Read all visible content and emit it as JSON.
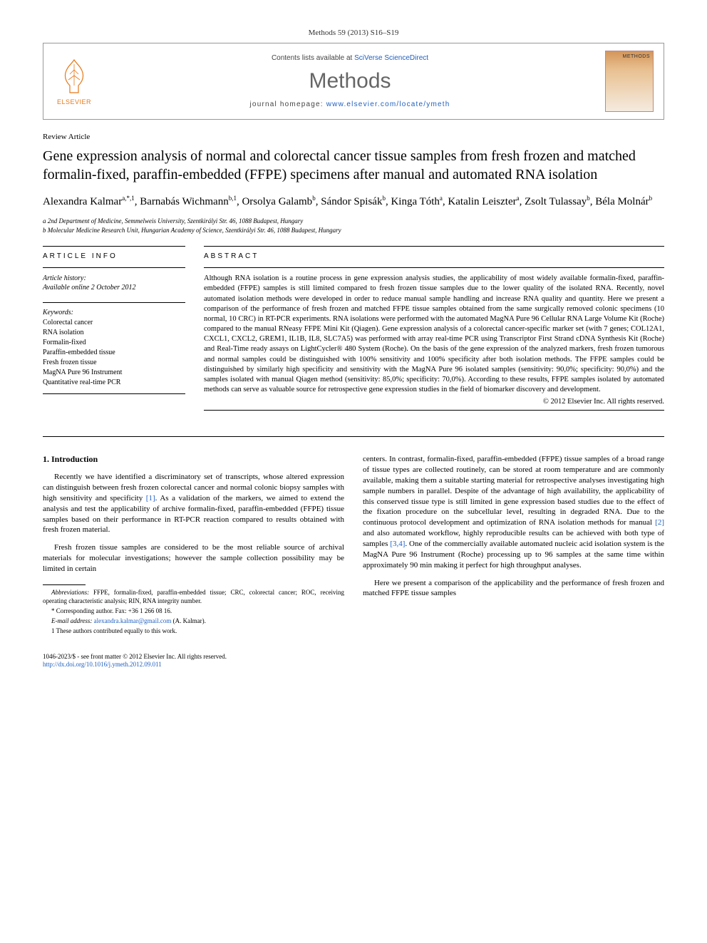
{
  "header": {
    "citation": "Methods 59 (2013) S16–S19"
  },
  "journal_box": {
    "publisher": "ELSEVIER",
    "contents_prefix": "Contents lists available at ",
    "contents_link": "SciVerse ScienceDirect",
    "journal_name": "Methods",
    "homepage_prefix": "journal homepage: ",
    "homepage_link": "www.elsevier.com/locate/ymeth",
    "cover_title": "METHODS"
  },
  "article": {
    "type": "Review Article",
    "title": "Gene expression analysis of normal and colorectal cancer tissue samples from fresh frozen and matched formalin-fixed, paraffin-embedded (FFPE) specimens after manual and automated RNA isolation",
    "authors_html": "Alexandra Kalmar<sup>a,*,1</sup>, Barnabás Wichmann<sup>b,1</sup>, Orsolya Galamb<sup>b</sup>, Sándor Spisák<sup>b</sup>, Kinga Tóth<sup>a</sup>, Katalin Leiszter<sup>a</sup>, Zsolt Tulassay<sup>b</sup>, Béla Molnár<sup>b</sup>",
    "affiliations": [
      "a 2nd Department of Medicine, Semmelweis University, Szentkirályi Str. 46, 1088 Budapest, Hungary",
      "b Molecular Medicine Research Unit, Hungarian Academy of Science, Szentkirályi Str. 46, 1088 Budapest, Hungary"
    ]
  },
  "info": {
    "label": "ARTICLE INFO",
    "history_label": "Article history:",
    "history_text": "Available online 2 October 2012",
    "keywords_label": "Keywords:",
    "keywords": [
      "Colorectal cancer",
      "RNA isolation",
      "Formalin-fixed",
      "Paraffin-embedded tissue",
      "Fresh frozen tissue",
      "MagNA Pure 96 Instrument",
      "Quantitative real-time PCR"
    ]
  },
  "abstract": {
    "label": "ABSTRACT",
    "text": "Although RNA isolation is a routine process in gene expression analysis studies, the applicability of most widely available formalin-fixed, paraffin-embedded (FFPE) samples is still limited compared to fresh frozen tissue samples due to the lower quality of the isolated RNA. Recently, novel automated isolation methods were developed in order to reduce manual sample handling and increase RNA quality and quantity. Here we present a comparison of the performance of fresh frozen and matched FFPE tissue samples obtained from the same surgically removed colonic specimens (10 normal, 10 CRC) in RT-PCR experiments. RNA isolations were performed with the automated MagNA Pure 96 Cellular RNA Large Volume Kit (Roche) compared to the manual RNeasy FFPE Mini Kit (Qiagen). Gene expression analysis of a colorectal cancer-specific marker set (with 7 genes; COL12A1, CXCL1, CXCL2, GREM1, IL1B, IL8, SLC7A5) was performed with array real-time PCR using Transcriptor First Strand cDNA Synthesis Kit (Roche) and Real-Time ready assays on LightCycler® 480 System (Roche). On the basis of the gene expression of the analyzed markers, fresh frozen tumorous and normal samples could be distinguished with 100% sensitivity and 100% specificity after both isolation methods. The FFPE samples could be distinguished by similarly high specificity and sensitivity with the MagNA Pure 96 isolated samples (sensitivity: 90,0%; specificity: 90,0%) and the samples isolated with manual Qiagen method (sensitivity: 85,0%; specificity: 70,0%). According to these results, FFPE samples isolated by automated methods can serve as valuable source for retrospective gene expression studies in the field of biomarker discovery and development.",
    "copyright": "© 2012 Elsevier Inc. All rights reserved."
  },
  "body": {
    "heading": "1. Introduction",
    "p1": "Recently we have identified a discriminatory set of transcripts, whose altered expression can distinguish between fresh frozen colorectal cancer and normal colonic biopsy samples with high sensitivity and specificity ",
    "p1_ref": "[1]",
    "p1_cont": ". As a validation of the markers, we aimed to extend the analysis and test the applicability of archive formalin-fixed, paraffin-embedded (FFPE) tissue samples based on their performance in RT-PCR reaction compared to results obtained with fresh frozen material.",
    "p2": "Fresh frozen tissue samples are considered to be the most reliable source of archival materials for molecular investigations; however the sample collection possibility may be limited in certain",
    "p3_a": "centers. In contrast, formalin-fixed, paraffin-embedded (FFPE) tissue samples of a broad range of tissue types are collected routinely, can be stored at room temperature and are commonly available, making them a suitable starting material for retrospective analyses investigating high sample numbers in parallel. Despite of the advantage of high availability, the applicability of this conserved tissue type is still limited in gene expression based studies due to the effect of the fixation procedure on the subcellular level, resulting in degraded RNA. Due to the continuous protocol development and optimization of RNA isolation methods for manual ",
    "p3_ref1": "[2]",
    "p3_b": " and also automated workflow, highly reproducible results can be achieved with both type of samples ",
    "p3_ref2": "[3,4]",
    "p3_c": ". One of the commercially available automated nucleic acid isolation system is the MagNA Pure 96 Instrument (Roche) processing up to 96 samples at the same time within approximately 90 min making it perfect for high throughput analyses.",
    "p4": "Here we present a comparison of the applicability and the performance of fresh frozen and matched FFPE tissue samples"
  },
  "footnotes": {
    "abbr_label": "Abbreviations:",
    "abbr_text": " FFPE, formalin-fixed, paraffin-embedded tissue; CRC, colorectal cancer; ROC, receiving operating characteristic analysis; RIN, RNA integrity number.",
    "corr": "* Corresponding author. Fax: +36 1 266 08 16.",
    "email_label": "E-mail address: ",
    "email": "alexandra.kalmar@gmail.com",
    "email_suffix": " (A. Kalmar).",
    "equal": "1 These authors contributed equally to this work."
  },
  "bottom": {
    "issn": "1046-2023/$ - see front matter © 2012 Elsevier Inc. All rights reserved.",
    "doi": "http://dx.doi.org/10.1016/j.ymeth.2012.09.011"
  },
  "colors": {
    "link": "#2060c0",
    "elsevier": "#e67817"
  }
}
